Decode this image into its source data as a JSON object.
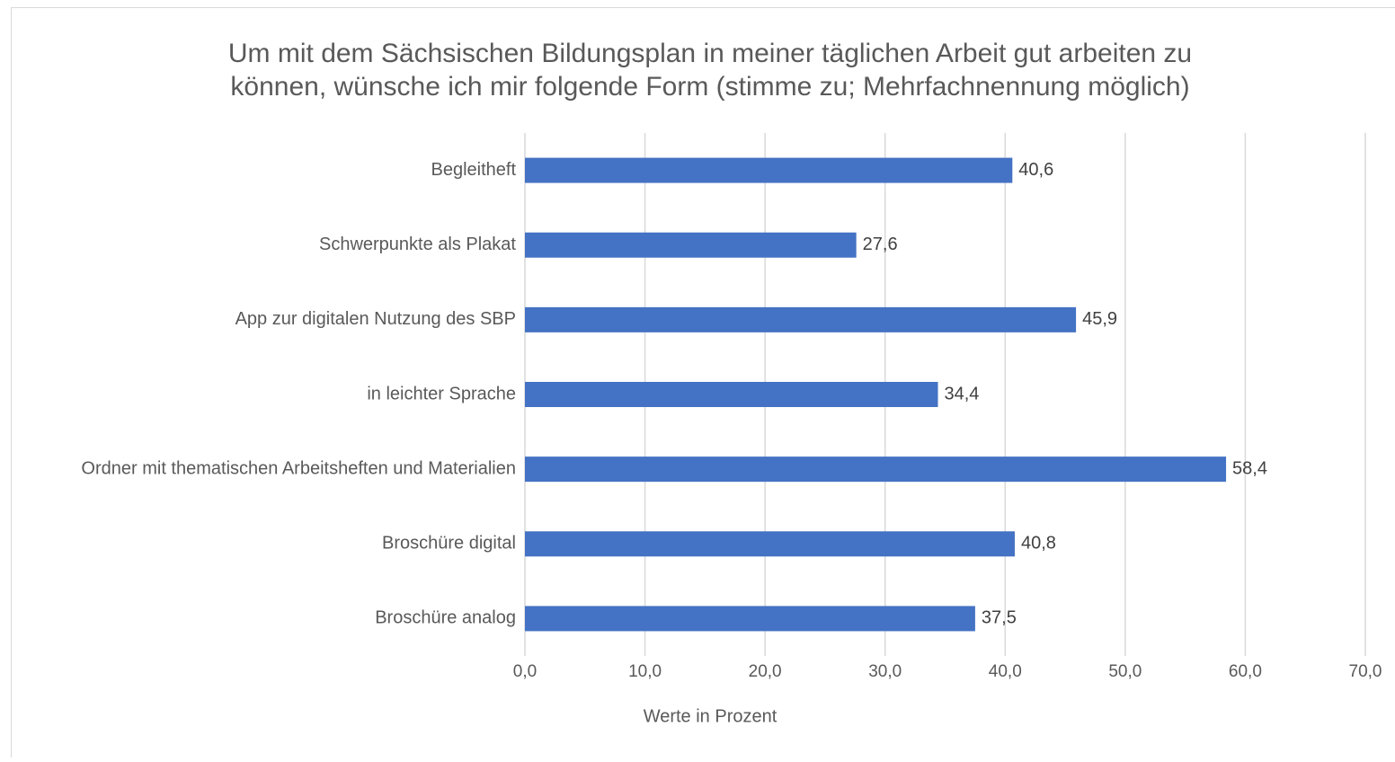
{
  "chart_data": {
    "type": "bar",
    "orientation": "horizontal",
    "title": [
      "Um mit dem Sächsischen Bildungsplan in meiner täglichen Arbeit gut arbeiten zu",
      "können, wünsche ich mir folgende Form (stimme zu; Mehrfachnennung möglich)"
    ],
    "categories": [
      "Begleitheft",
      "Schwerpunkte als Plakat",
      "App zur digitalen Nutzung des SBP",
      "in leichter Sprache",
      "Ordner mit thematischen Arbeitsheften und Materialien",
      "Broschüre digital",
      "Broschüre analog"
    ],
    "values": [
      40.6,
      27.6,
      45.9,
      34.4,
      58.4,
      40.8,
      37.5
    ],
    "value_labels": [
      "40,6",
      "27,6",
      "45,9",
      "34,4",
      "58,4",
      "40,8",
      "37,5"
    ],
    "color": "#4472c4",
    "xlabel": "Werte in Prozent",
    "xlim": [
      0,
      70
    ],
    "xticks": [
      {
        "value": 0,
        "label": "0,0"
      },
      {
        "value": 10,
        "label": "10,0"
      },
      {
        "value": 20,
        "label": "20,0"
      },
      {
        "value": 30,
        "label": "30,0"
      },
      {
        "value": 40,
        "label": "40,0"
      },
      {
        "value": 50,
        "label": "50,0"
      },
      {
        "value": 60,
        "label": "60,0"
      },
      {
        "value": 70,
        "label": "70,0"
      }
    ],
    "grid": true
  }
}
